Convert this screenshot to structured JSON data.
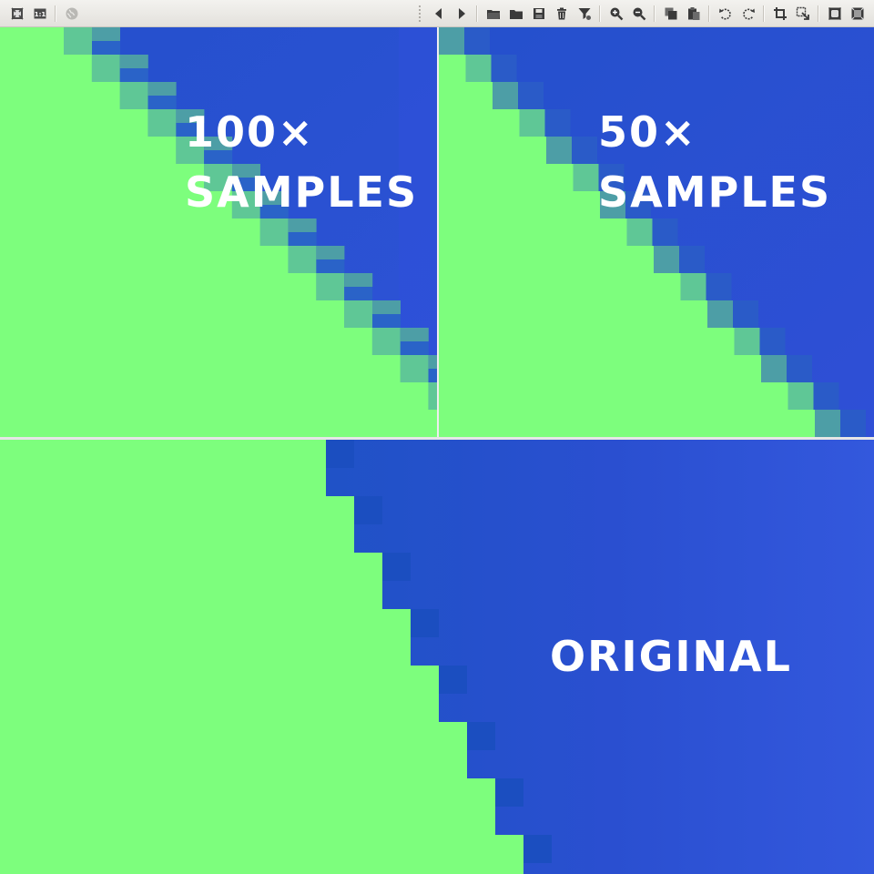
{
  "toolbar": {
    "left_icons": [
      "fit-to-window-icon",
      "actual-size-icon",
      "globe-icon"
    ],
    "right_icons": [
      "previous-icon",
      "next-icon",
      "open-folder-icon",
      "folder-icon",
      "save-icon",
      "delete-icon",
      "filter-icon",
      "zoom-in-icon",
      "zoom-out-icon",
      "copy-icon",
      "paste-icon",
      "rotate-left-icon",
      "rotate-right-icon",
      "crop-icon",
      "resize-icon",
      "fullscreen-icon",
      "exit-fullscreen-icon"
    ],
    "actual_size_label": "1:1"
  },
  "panels": {
    "top_left": {
      "caption_line1": "100×",
      "caption_line2": "SAMPLES"
    },
    "top_right": {
      "caption_line1": "50×",
      "caption_line2": "SAMPLES"
    },
    "bottom": {
      "caption": "ORIGINAL"
    }
  },
  "colors": {
    "green": "#7dfe7d",
    "blue_dark": "#1f52c6",
    "blue_mid": "#2a4fd0",
    "blue_light": "#3358dd",
    "blend_teal": "#4d9ea6",
    "blend_soft": "#5fc796",
    "toolbar_icon": "#3a3a3a",
    "toolbar_icon_disabled": "#9c9a95"
  }
}
